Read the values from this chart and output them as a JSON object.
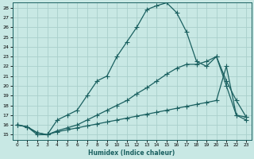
{
  "xlabel": "Humidex (Indice chaleur)",
  "ylabel": "",
  "xlim": [
    -0.5,
    23.5
  ],
  "ylim": [
    14.5,
    28.5
  ],
  "xticks": [
    0,
    1,
    2,
    3,
    4,
    5,
    6,
    7,
    8,
    9,
    10,
    11,
    12,
    13,
    14,
    15,
    16,
    17,
    18,
    19,
    20,
    21,
    22,
    23
  ],
  "yticks": [
    15,
    16,
    17,
    18,
    19,
    20,
    21,
    22,
    23,
    24,
    25,
    26,
    27,
    28
  ],
  "bg_color": "#c8e8e4",
  "grid_color": "#aad0cc",
  "line_color": "#1a6060",
  "line1_x": [
    0,
    1,
    2,
    3,
    4,
    5,
    6,
    7,
    8,
    9,
    10,
    11,
    12,
    13,
    14,
    15,
    16,
    17,
    18,
    19,
    20,
    21,
    22,
    23
  ],
  "line1_y": [
    16.0,
    15.8,
    15.0,
    15.0,
    16.5,
    17.0,
    17.5,
    19.0,
    20.5,
    21.0,
    23.0,
    24.5,
    26.0,
    27.8,
    28.2,
    28.5,
    27.5,
    25.5,
    22.5,
    22.0,
    23.0,
    20.5,
    18.5,
    16.8
  ],
  "line2_x": [
    0,
    1,
    2,
    3,
    4,
    5,
    6,
    7,
    8,
    9,
    10,
    11,
    12,
    13,
    14,
    15,
    16,
    17,
    18,
    19,
    20,
    21,
    22,
    23
  ],
  "line2_y": [
    16.0,
    15.8,
    15.2,
    15.0,
    15.3,
    15.5,
    15.7,
    15.9,
    16.1,
    16.3,
    16.5,
    16.7,
    16.9,
    17.1,
    17.3,
    17.5,
    17.7,
    17.9,
    18.1,
    18.3,
    18.5,
    22.0,
    17.0,
    16.5
  ],
  "line3_x": [
    0,
    1,
    2,
    3,
    4,
    5,
    6,
    7,
    8,
    9,
    10,
    11,
    12,
    13,
    14,
    15,
    16,
    17,
    18,
    19,
    20,
    21,
    22,
    23
  ],
  "line3_y": [
    16.0,
    15.8,
    15.2,
    15.0,
    15.4,
    15.7,
    16.0,
    16.5,
    17.0,
    17.5,
    18.0,
    18.5,
    19.2,
    19.8,
    20.5,
    21.2,
    21.8,
    22.2,
    22.2,
    22.5,
    23.0,
    20.0,
    17.0,
    16.8
  ]
}
